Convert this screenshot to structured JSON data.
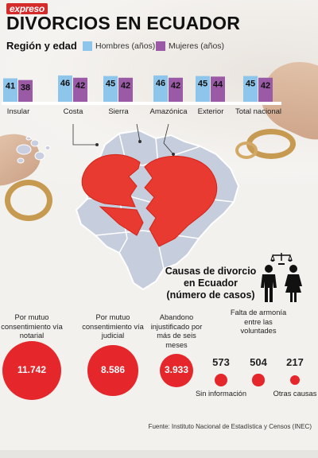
{
  "header": {
    "logo": "expreso",
    "title": "DIVORCIOS EN ECUADOR",
    "subtitle": "Región y edad"
  },
  "legend": {
    "men": "Hombres (años)",
    "women": "Mujeres (años)"
  },
  "colors": {
    "men": "#8ec5ea",
    "women": "#9b5aa6",
    "red": "#e5262b"
  },
  "chart_data": [
    {
      "type": "bar",
      "title": "Región y edad",
      "categories": [
        "Insular",
        "Costa",
        "Sierra",
        "Amazónica",
        "Exterior",
        "Total nacional"
      ],
      "series": [
        {
          "name": "Hombres (años)",
          "values": [
            41,
            46,
            45,
            46,
            45,
            45
          ]
        },
        {
          "name": "Mujeres (años)",
          "values": [
            38,
            42,
            42,
            42,
            44,
            42
          ]
        }
      ]
    },
    {
      "type": "scatter",
      "title": "Causas de divorcio en Ecuador (número de casos)",
      "categories": [
        "Por mutuo consentimiento vía notarial",
        "Por mutuo consentimiento vía judicial",
        "Abandono injustificado por más de seis meses",
        "Sin información",
        "Falta de armonía entre las voluntades",
        "Otras causas"
      ],
      "values": [
        11742,
        8586,
        3933,
        573,
        504,
        217
      ],
      "value_labels": [
        "11.742",
        "8.586",
        "3.933",
        "573",
        "504",
        "217"
      ]
    }
  ],
  "causes": {
    "title": "Causas de divorcio en Ecuador (número de casos)"
  },
  "source": "Fuente: Instituto Nacional de Estadística y Censos (INEC)"
}
